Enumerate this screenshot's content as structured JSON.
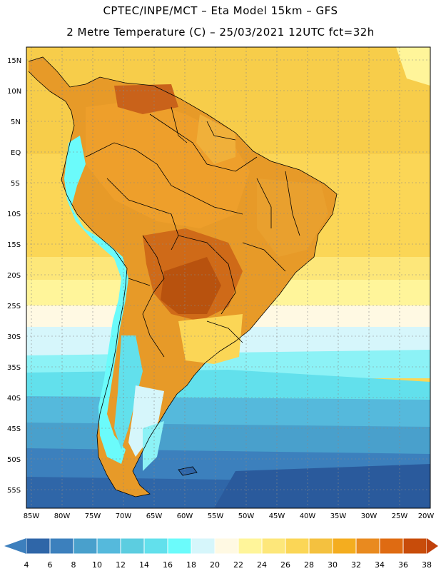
{
  "header": {
    "title_line1": "CPTEC/INPE/MCT –  Eta Model 15km – GFS",
    "title_line2": "2 Metre Temperature (C) – 25/03/2021 12UTC fct=32h"
  },
  "map": {
    "lat_labels": [
      "15N",
      "10N",
      "5N",
      "EQ",
      "5S",
      "10S",
      "15S",
      "20S",
      "25S",
      "30S",
      "35S",
      "40S",
      "45S",
      "50S",
      "55S"
    ],
    "lon_labels": [
      "85W",
      "80W",
      "75W",
      "70W",
      "65W",
      "60W",
      "55W",
      "50W",
      "45W",
      "40W",
      "35W",
      "30W",
      "25W",
      "20W"
    ]
  },
  "colorbar": {
    "ticks": [
      "4",
      "6",
      "8",
      "10",
      "12",
      "14",
      "16",
      "18",
      "20",
      "22",
      "24",
      "26",
      "28",
      "30",
      "32",
      "34",
      "36",
      "38"
    ],
    "low_color": "#3d7fbd",
    "high_color": "#c0400a",
    "colors": [
      "#2f66a8",
      "#3c80bd",
      "#49a0cc",
      "#55b9dc",
      "#5ccde0",
      "#62e0ec",
      "#6bfbfb",
      "#d6f6fb",
      "#fff9e3",
      "#fff59a",
      "#fde77a",
      "#fbd656",
      "#f4c13f",
      "#f4ad1f",
      "#e98a1f",
      "#df6b12",
      "#c84c0a"
    ]
  }
}
